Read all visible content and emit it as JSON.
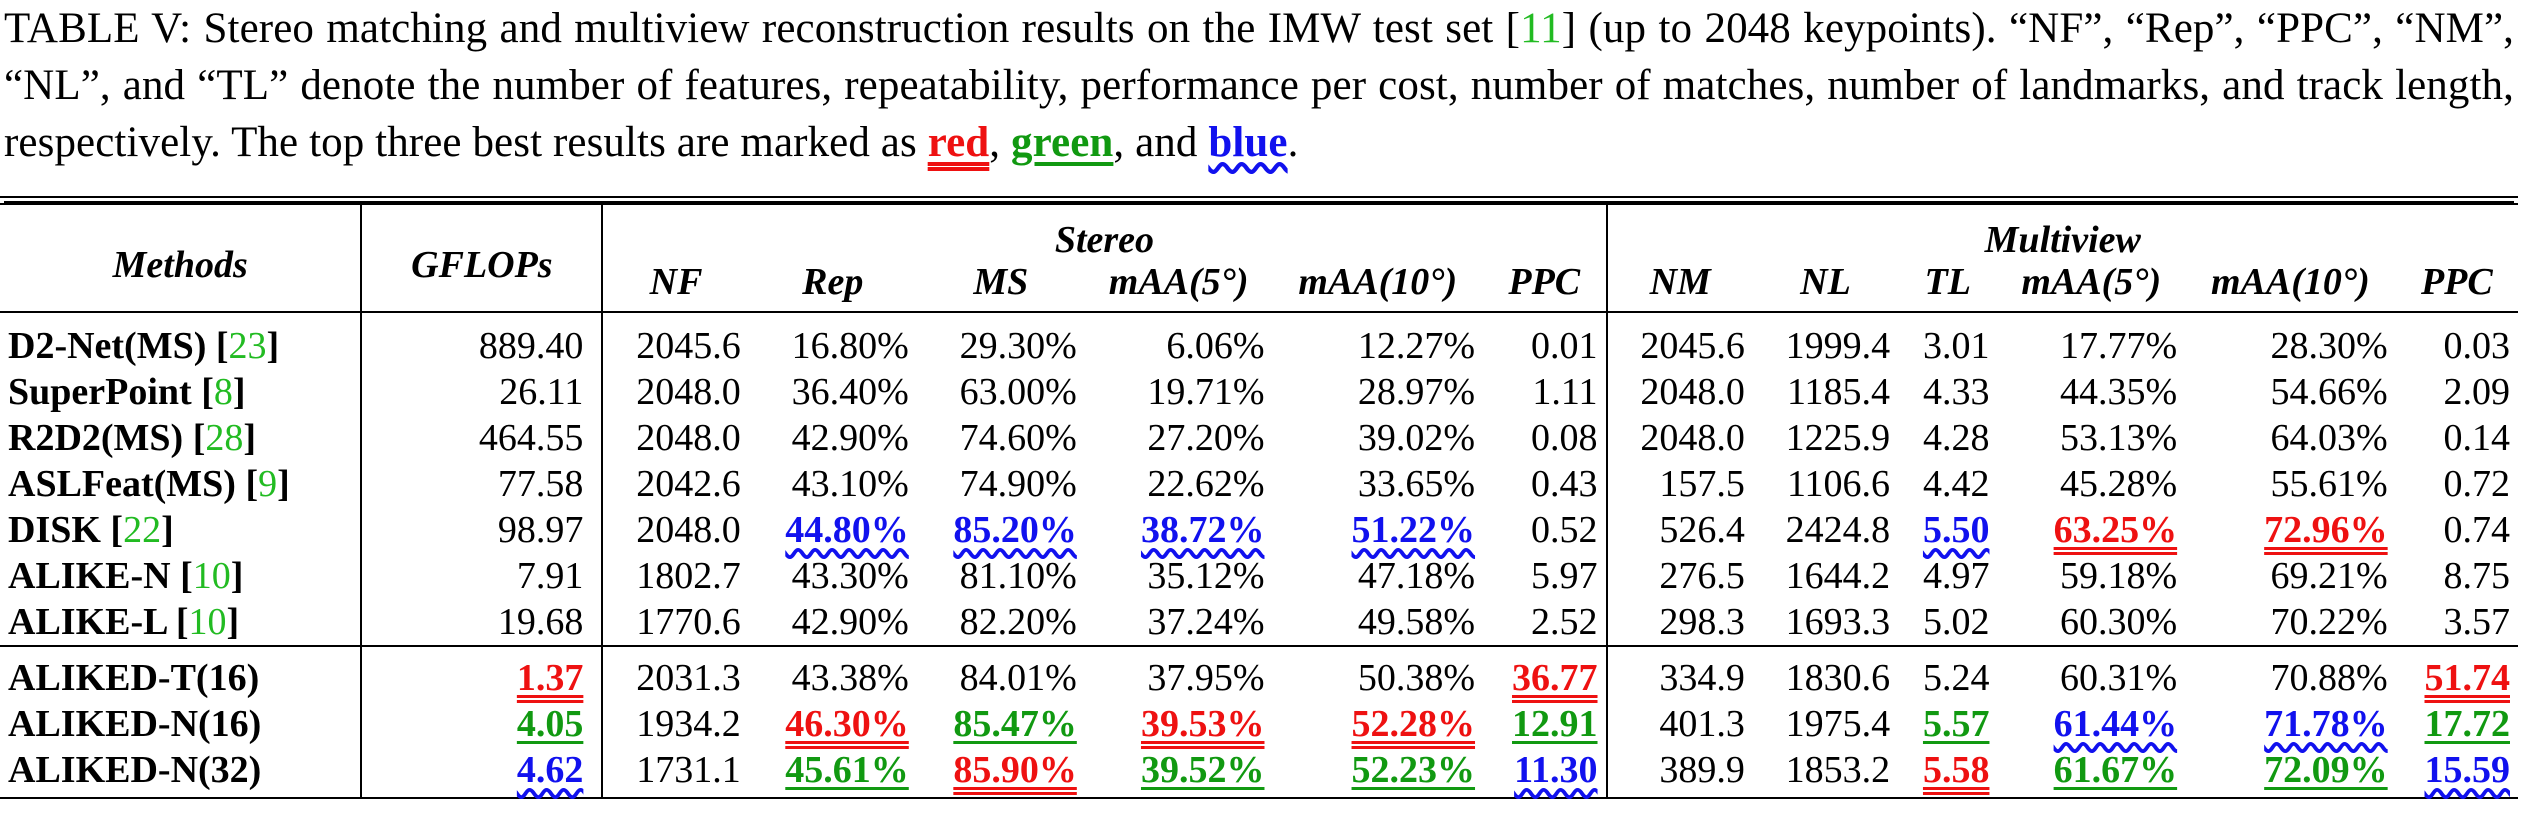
{
  "caption": {
    "prefix": "TABLE V: Stereo matching and multiview reconstruction results on the IMW test set [",
    "cite": "11",
    "middle": "] (up to 2048 keypoints). “NF”, “Rep”, “PPC”, “NM”, “NL”, and “TL” denote the number of features, repeatability, performance per cost, number of matches, number of landmarks, and track length, respectively. The top three best results are marked as ",
    "red_word": "red",
    "sep1": ", ",
    "green_word": "green",
    "sep2": ", and ",
    "blue_word": "blue",
    "end": "."
  },
  "headers": {
    "methods": "Methods",
    "gflops": "GFLOPs",
    "stereo_group": "Stereo",
    "multiview_group": "Multiview",
    "stereo_cols": [
      "NF",
      "Rep",
      "MS",
      "mAA(5°)",
      "mAA(10°)",
      "PPC"
    ],
    "multiview_cols": [
      "NM",
      "NL",
      "TL",
      "mAA(5°)",
      "mAA(10°)",
      "PPC"
    ]
  },
  "rows": [
    {
      "name": "D2-Net(MS)",
      "cite": "23",
      "cells": [
        {
          "v": "889.40",
          "r": 0
        },
        {
          "v": "2045.6",
          "r": 0
        },
        {
          "v": "16.80%",
          "r": 0
        },
        {
          "v": "29.30%",
          "r": 0
        },
        {
          "v": "6.06%",
          "r": 0
        },
        {
          "v": "12.27%",
          "r": 0
        },
        {
          "v": "0.01",
          "r": 0
        },
        {
          "v": "2045.6",
          "r": 0
        },
        {
          "v": "1999.4",
          "r": 0
        },
        {
          "v": "3.01",
          "r": 0
        },
        {
          "v": "17.77%",
          "r": 0
        },
        {
          "v": "28.30%",
          "r": 0
        },
        {
          "v": "0.03",
          "r": 0
        }
      ]
    },
    {
      "name": "SuperPoint",
      "cite": "8",
      "cells": [
        {
          "v": "26.11",
          "r": 0
        },
        {
          "v": "2048.0",
          "r": 0
        },
        {
          "v": "36.40%",
          "r": 0
        },
        {
          "v": "63.00%",
          "r": 0
        },
        {
          "v": "19.71%",
          "r": 0
        },
        {
          "v": "28.97%",
          "r": 0
        },
        {
          "v": "1.11",
          "r": 0
        },
        {
          "v": "2048.0",
          "r": 0
        },
        {
          "v": "1185.4",
          "r": 0
        },
        {
          "v": "4.33",
          "r": 0
        },
        {
          "v": "44.35%",
          "r": 0
        },
        {
          "v": "54.66%",
          "r": 0
        },
        {
          "v": "2.09",
          "r": 0
        }
      ]
    },
    {
      "name": "R2D2(MS)",
      "cite": "28",
      "cells": [
        {
          "v": "464.55",
          "r": 0
        },
        {
          "v": "2048.0",
          "r": 0
        },
        {
          "v": "42.90%",
          "r": 0
        },
        {
          "v": "74.60%",
          "r": 0
        },
        {
          "v": "27.20%",
          "r": 0
        },
        {
          "v": "39.02%",
          "r": 0
        },
        {
          "v": "0.08",
          "r": 0
        },
        {
          "v": "2048.0",
          "r": 0
        },
        {
          "v": "1225.9",
          "r": 0
        },
        {
          "v": "4.28",
          "r": 0
        },
        {
          "v": "53.13%",
          "r": 0
        },
        {
          "v": "64.03%",
          "r": 0
        },
        {
          "v": "0.14",
          "r": 0
        }
      ]
    },
    {
      "name": "ASLFeat(MS)",
      "cite": "9",
      "cells": [
        {
          "v": "77.58",
          "r": 0
        },
        {
          "v": "2042.6",
          "r": 0
        },
        {
          "v": "43.10%",
          "r": 0
        },
        {
          "v": "74.90%",
          "r": 0
        },
        {
          "v": "22.62%",
          "r": 0
        },
        {
          "v": "33.65%",
          "r": 0
        },
        {
          "v": "0.43",
          "r": 0
        },
        {
          "v": "157.5",
          "r": 0
        },
        {
          "v": "1106.6",
          "r": 0
        },
        {
          "v": "4.42",
          "r": 0
        },
        {
          "v": "45.28%",
          "r": 0
        },
        {
          "v": "55.61%",
          "r": 0
        },
        {
          "v": "0.72",
          "r": 0
        }
      ]
    },
    {
      "name": "DISK",
      "cite": "22",
      "cells": [
        {
          "v": "98.97",
          "r": 0
        },
        {
          "v": "2048.0",
          "r": 0
        },
        {
          "v": "44.80%",
          "r": 3
        },
        {
          "v": "85.20%",
          "r": 3
        },
        {
          "v": "38.72%",
          "r": 3
        },
        {
          "v": "51.22%",
          "r": 3
        },
        {
          "v": "0.52",
          "r": 0
        },
        {
          "v": "526.4",
          "r": 0
        },
        {
          "v": "2424.8",
          "r": 0
        },
        {
          "v": "5.50",
          "r": 3
        },
        {
          "v": "63.25%",
          "r": 1
        },
        {
          "v": "72.96%",
          "r": 1
        },
        {
          "v": "0.74",
          "r": 0
        }
      ]
    },
    {
      "name": "ALIKE-N",
      "cite": "10",
      "cells": [
        {
          "v": "7.91",
          "r": 0
        },
        {
          "v": "1802.7",
          "r": 0
        },
        {
          "v": "43.30%",
          "r": 0
        },
        {
          "v": "81.10%",
          "r": 0
        },
        {
          "v": "35.12%",
          "r": 0
        },
        {
          "v": "47.18%",
          "r": 0
        },
        {
          "v": "5.97",
          "r": 0
        },
        {
          "v": "276.5",
          "r": 0
        },
        {
          "v": "1644.2",
          "r": 0
        },
        {
          "v": "4.97",
          "r": 0
        },
        {
          "v": "59.18%",
          "r": 0
        },
        {
          "v": "69.21%",
          "r": 0
        },
        {
          "v": "8.75",
          "r": 0
        }
      ]
    },
    {
      "name": "ALIKE-L",
      "cite": "10",
      "cells": [
        {
          "v": "19.68",
          "r": 0
        },
        {
          "v": "1770.6",
          "r": 0
        },
        {
          "v": "42.90%",
          "r": 0
        },
        {
          "v": "82.20%",
          "r": 0
        },
        {
          "v": "37.24%",
          "r": 0
        },
        {
          "v": "49.58%",
          "r": 0
        },
        {
          "v": "2.52",
          "r": 0
        },
        {
          "v": "298.3",
          "r": 0
        },
        {
          "v": "1693.3",
          "r": 0
        },
        {
          "v": "5.02",
          "r": 0
        },
        {
          "v": "60.30%",
          "r": 0
        },
        {
          "v": "70.22%",
          "r": 0
        },
        {
          "v": "3.57",
          "r": 0
        }
      ]
    },
    {
      "name": "ALIKED-T(16)",
      "cite": "",
      "cells": [
        {
          "v": "1.37",
          "r": 1
        },
        {
          "v": "2031.3",
          "r": 0
        },
        {
          "v": "43.38%",
          "r": 0
        },
        {
          "v": "84.01%",
          "r": 0
        },
        {
          "v": "37.95%",
          "r": 0
        },
        {
          "v": "50.38%",
          "r": 0
        },
        {
          "v": "36.77",
          "r": 1
        },
        {
          "v": "334.9",
          "r": 0
        },
        {
          "v": "1830.6",
          "r": 0
        },
        {
          "v": "5.24",
          "r": 0
        },
        {
          "v": "60.31%",
          "r": 0
        },
        {
          "v": "70.88%",
          "r": 0
        },
        {
          "v": "51.74",
          "r": 1
        }
      ]
    },
    {
      "name": "ALIKED-N(16)",
      "cite": "",
      "cells": [
        {
          "v": "4.05",
          "r": 2
        },
        {
          "v": "1934.2",
          "r": 0
        },
        {
          "v": "46.30%",
          "r": 1
        },
        {
          "v": "85.47%",
          "r": 2
        },
        {
          "v": "39.53%",
          "r": 1
        },
        {
          "v": "52.28%",
          "r": 1
        },
        {
          "v": "12.91",
          "r": 2
        },
        {
          "v": "401.3",
          "r": 0
        },
        {
          "v": "1975.4",
          "r": 0
        },
        {
          "v": "5.57",
          "r": 2
        },
        {
          "v": "61.44%",
          "r": 3
        },
        {
          "v": "71.78%",
          "r": 3
        },
        {
          "v": "17.72",
          "r": 2
        }
      ]
    },
    {
      "name": "ALIKED-N(32)",
      "cite": "",
      "cells": [
        {
          "v": "4.62",
          "r": 3
        },
        {
          "v": "1731.1",
          "r": 0
        },
        {
          "v": "45.61%",
          "r": 2
        },
        {
          "v": "85.90%",
          "r": 1
        },
        {
          "v": "39.52%",
          "r": 2
        },
        {
          "v": "52.23%",
          "r": 2
        },
        {
          "v": "11.30",
          "r": 3
        },
        {
          "v": "389.9",
          "r": 0
        },
        {
          "v": "1853.2",
          "r": 0
        },
        {
          "v": "5.58",
          "r": 1
        },
        {
          "v": "61.67%",
          "r": 2
        },
        {
          "v": "72.09%",
          "r": 2
        },
        {
          "v": "15.59",
          "r": 3
        }
      ]
    }
  ]
}
